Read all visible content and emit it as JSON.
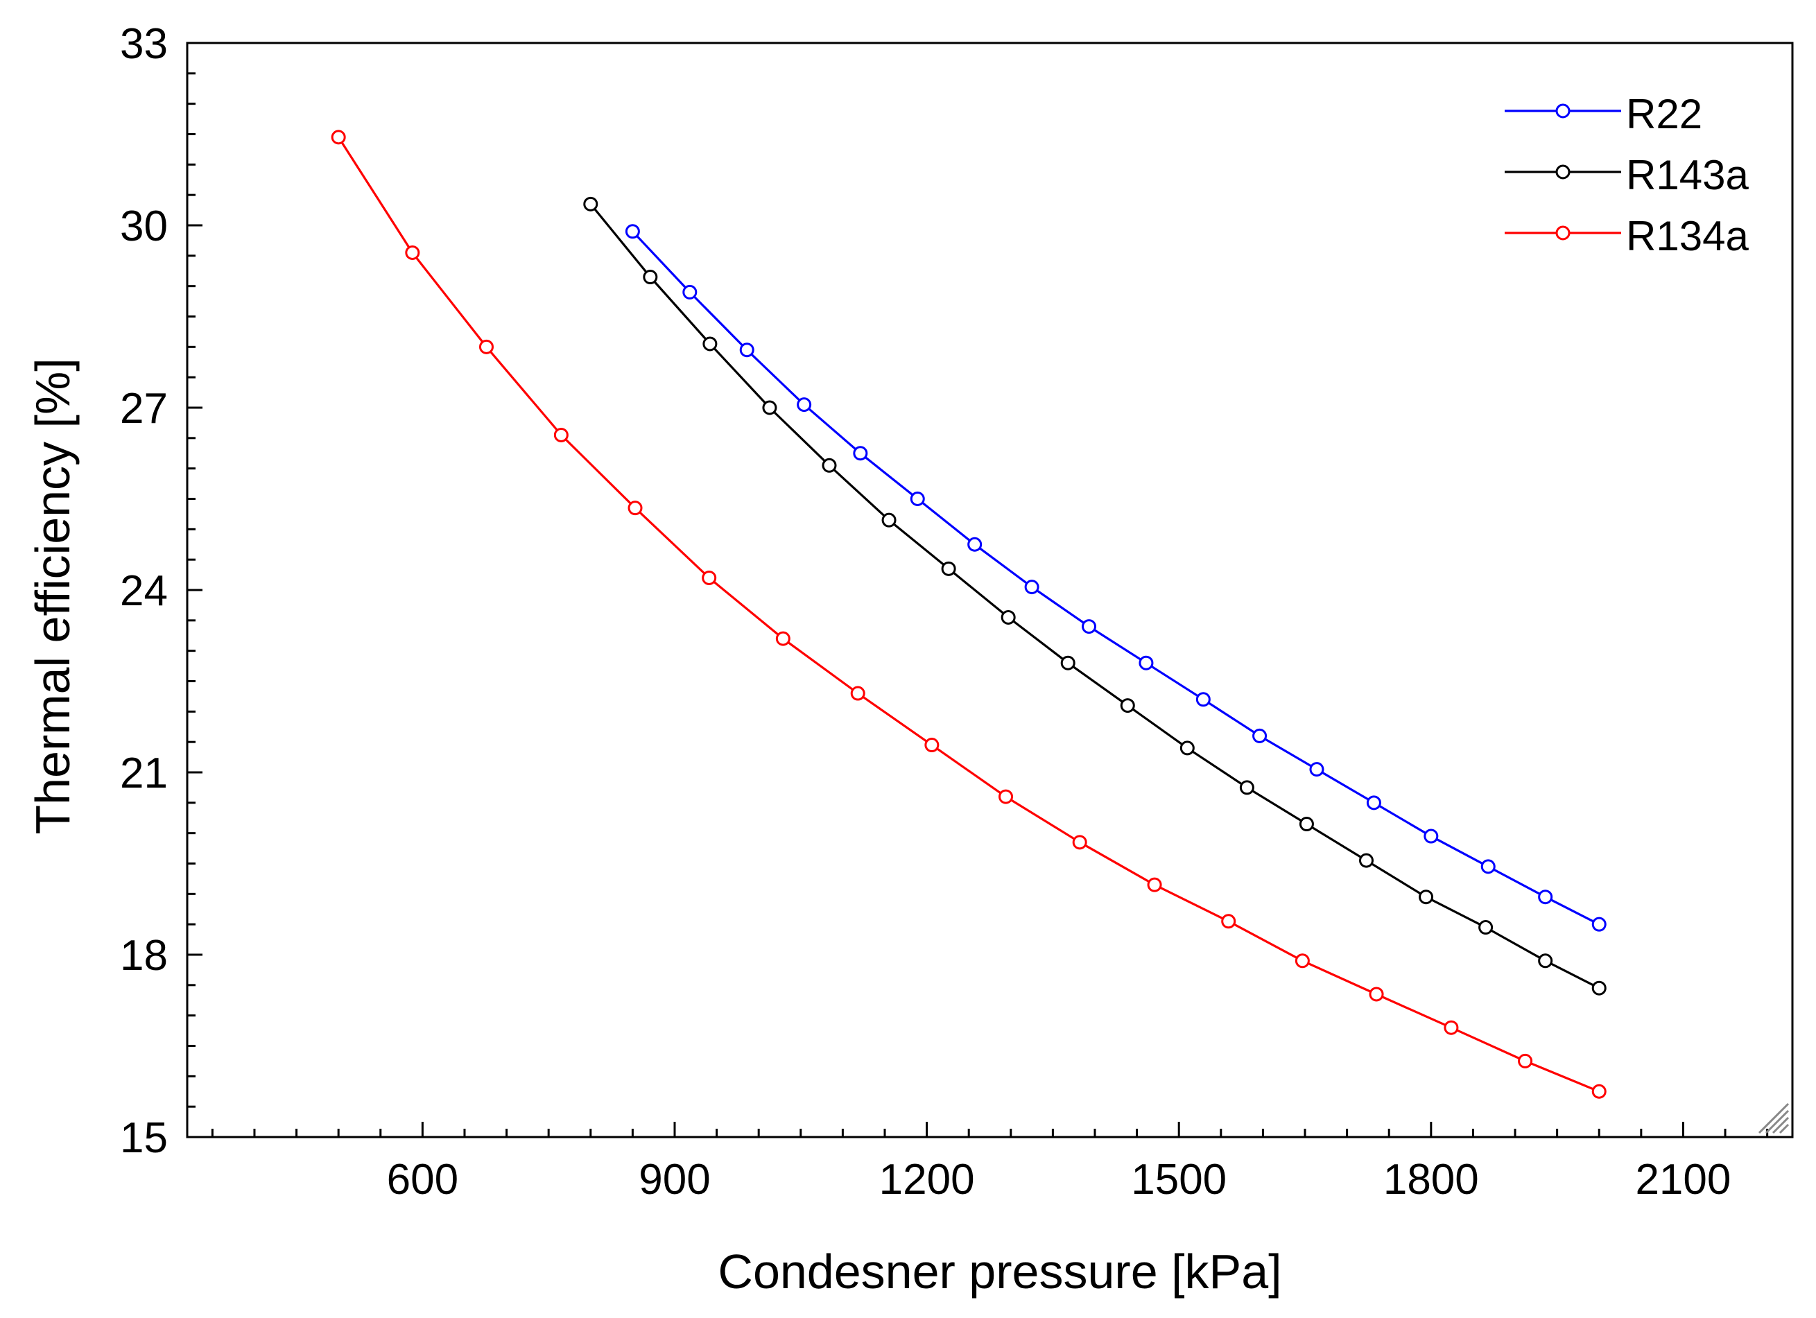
{
  "chart_data": {
    "type": "line",
    "title": "",
    "xlabel": "Condesner pressure [kPa]",
    "ylabel": "Thermal efficiency [%]",
    "xlim": [
      320,
      2230
    ],
    "ylim": [
      15,
      33
    ],
    "xticks": [
      600,
      900,
      1200,
      1500,
      1800,
      2100
    ],
    "yticks": [
      15,
      18,
      21,
      24,
      27,
      30,
      33
    ],
    "grid": false,
    "legend_position": "top-right",
    "series": [
      {
        "name": "R22",
        "color": "#0000ff",
        "x": [
          850,
          918,
          986,
          1054,
          1121,
          1189,
          1257,
          1325,
          1393,
          1461,
          1529,
          1596,
          1664,
          1732,
          1800,
          1868,
          1936,
          2000
        ],
        "y": [
          29.9,
          28.9,
          27.95,
          27.05,
          26.25,
          25.5,
          24.75,
          24.05,
          23.4,
          22.8,
          22.2,
          21.6,
          21.05,
          20.5,
          19.95,
          19.45,
          18.95,
          18.5
        ]
      },
      {
        "name": "R143a",
        "color": "#000000",
        "x": [
          800,
          871,
          942,
          1013,
          1084,
          1155,
          1226,
          1297,
          1368,
          1439,
          1510,
          1581,
          1652,
          1723,
          1794,
          1865,
          1936,
          2000
        ],
        "y": [
          30.35,
          29.15,
          28.05,
          27.0,
          26.05,
          25.15,
          24.35,
          23.55,
          22.8,
          22.1,
          21.4,
          20.75,
          20.15,
          19.55,
          18.95,
          18.45,
          17.9,
          17.45
        ]
      },
      {
        "name": "R134a",
        "color": "#ff0000",
        "x": [
          500,
          588,
          676,
          765,
          853,
          941,
          1029,
          1118,
          1206,
          1294,
          1382,
          1471,
          1559,
          1647,
          1735,
          1824,
          1912,
          2000
        ],
        "y": [
          31.45,
          29.55,
          28.0,
          26.55,
          25.35,
          24.2,
          23.2,
          22.3,
          21.45,
          20.6,
          19.85,
          19.15,
          18.55,
          17.9,
          17.35,
          16.8,
          16.25,
          15.75
        ]
      }
    ]
  }
}
